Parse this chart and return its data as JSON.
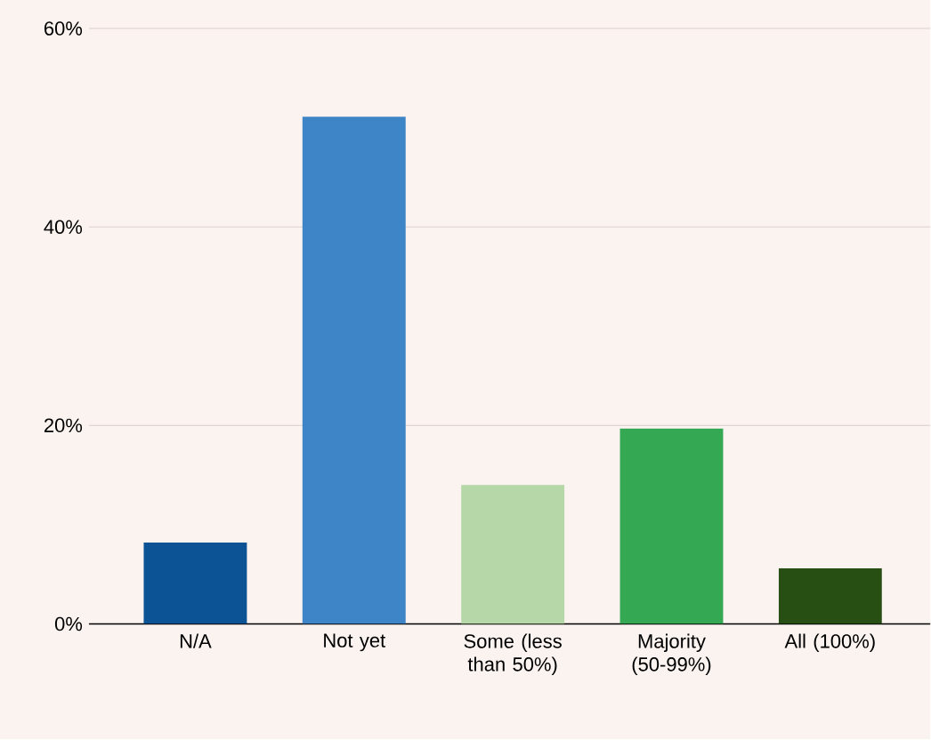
{
  "chart_data": {
    "type": "bar",
    "categories": [
      "N/A",
      "Not yet",
      "Some (less than 50%)",
      "Majority (50-99%)",
      "All (100%)"
    ],
    "values": [
      8.2,
      51.1,
      14.0,
      19.7,
      5.6
    ],
    "colors": [
      "#0b5394",
      "#3d85c6",
      "#b6d7a8",
      "#34a853",
      "#274e13"
    ],
    "ylim": [
      0,
      60
    ],
    "yticks": [
      {
        "value": 0,
        "label": "0%"
      },
      {
        "value": 20,
        "label": "20%"
      },
      {
        "value": 40,
        "label": "40%"
      },
      {
        "value": 60,
        "label": "60%"
      }
    ],
    "grid": "y"
  }
}
